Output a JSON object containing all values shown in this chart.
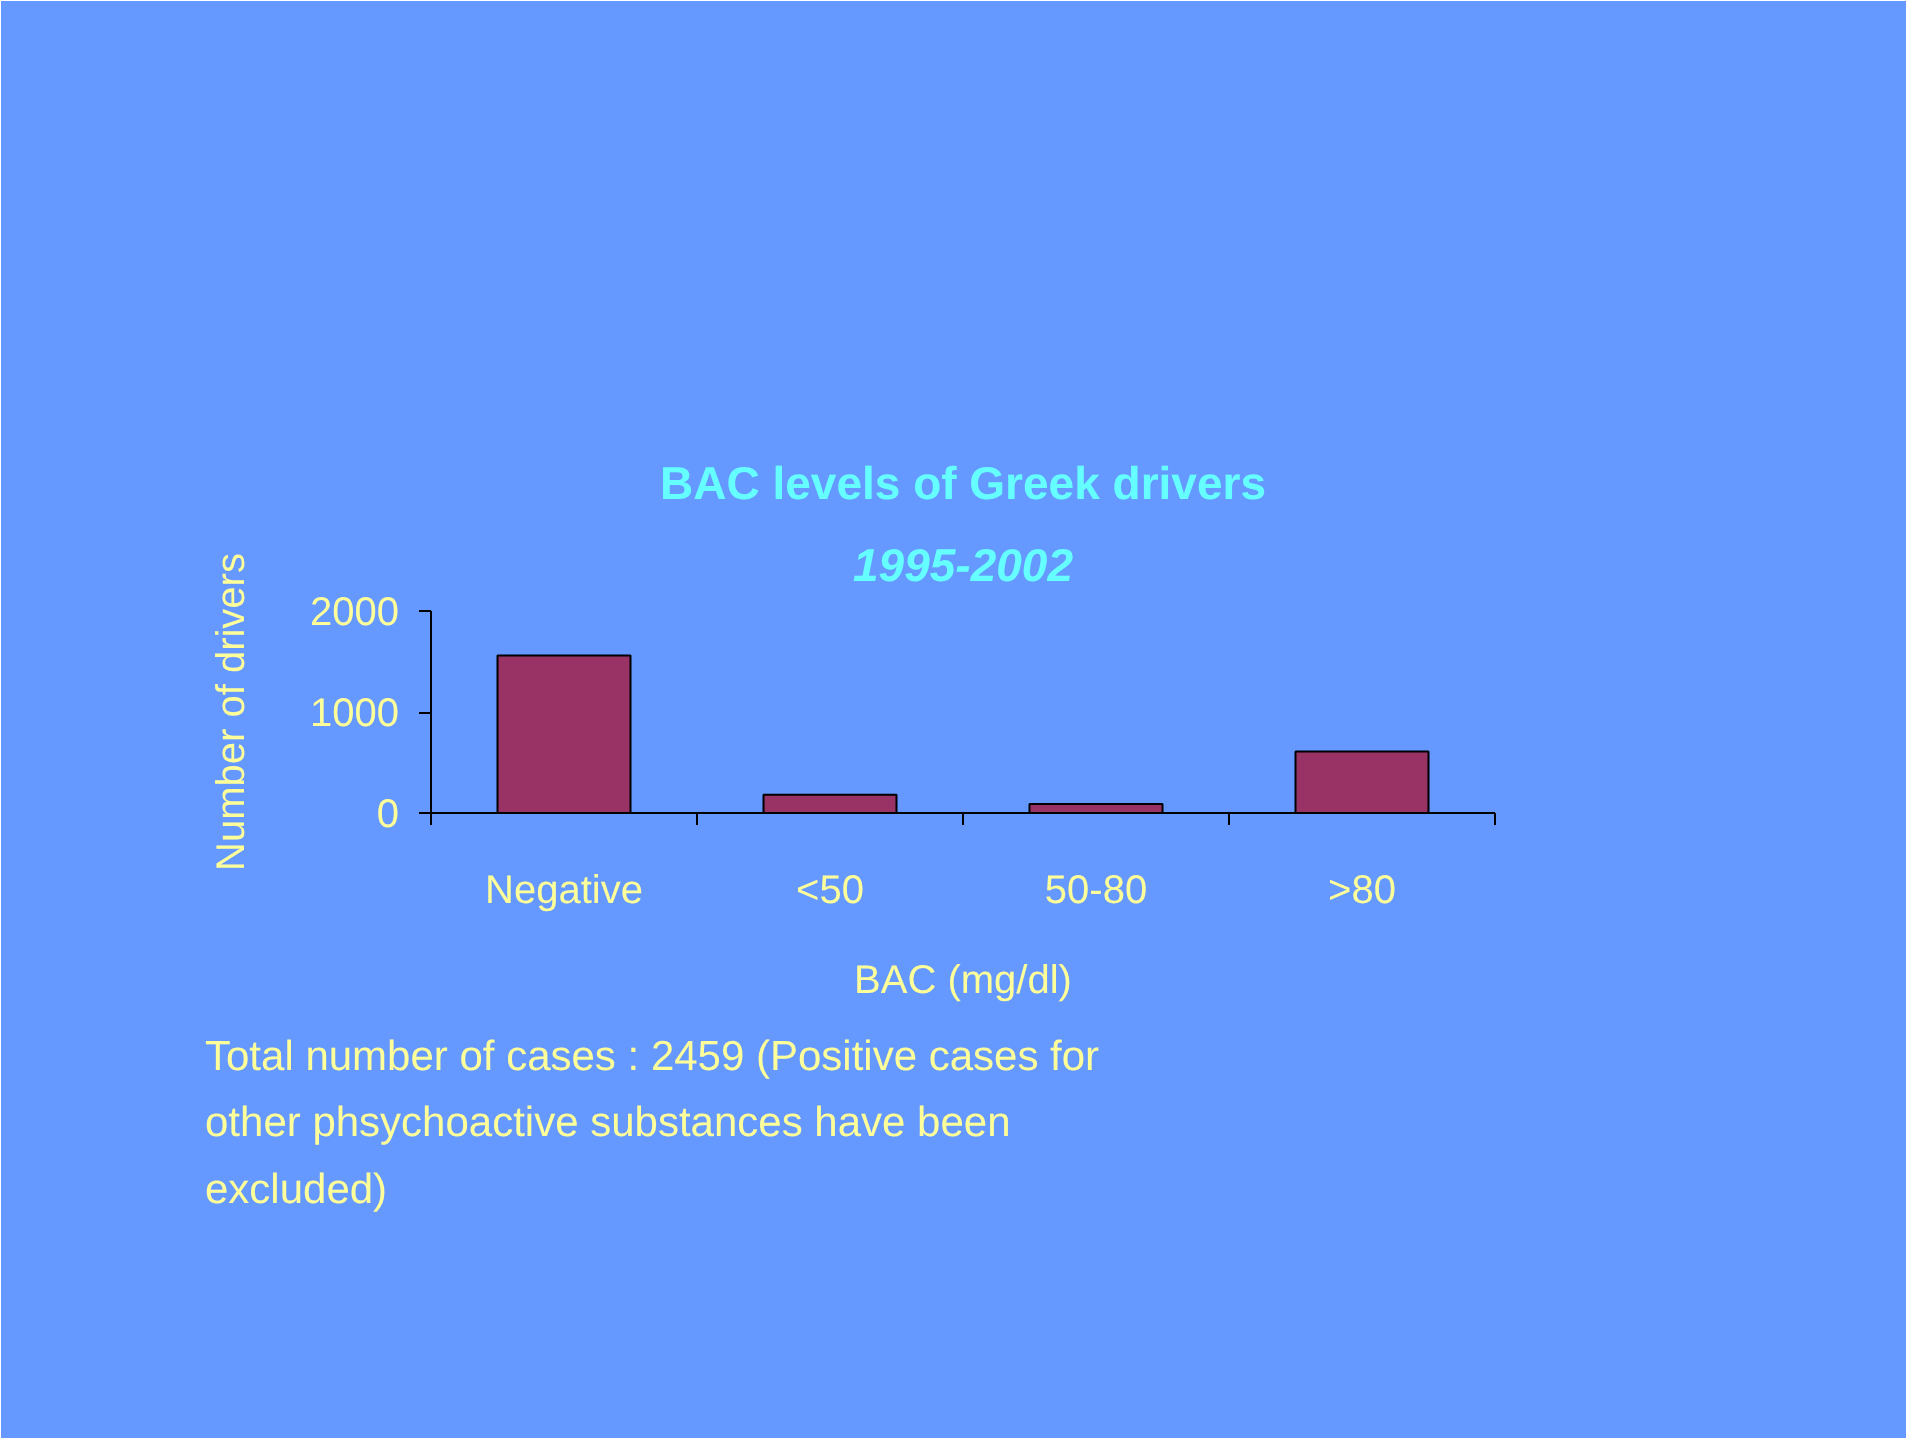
{
  "chart_data": {
    "type": "bar",
    "title": "BAC levels of Greek drivers",
    "subtitle": "1995-2002",
    "xlabel": "BAC (mg/dl)",
    "ylabel": "Number of drivers",
    "categories": [
      "Negative",
      "<50",
      "50-80",
      ">80"
    ],
    "values": [
      1560,
      180,
      90,
      610
    ],
    "color": "#993366",
    "ylim": [
      0,
      2000
    ],
    "yticks": [
      0,
      1000,
      2000
    ],
    "grid": false,
    "annotations": [
      "Total number of cases : 2459 (Positive cases for other phsychoactive substances have been excluded)"
    ]
  }
}
